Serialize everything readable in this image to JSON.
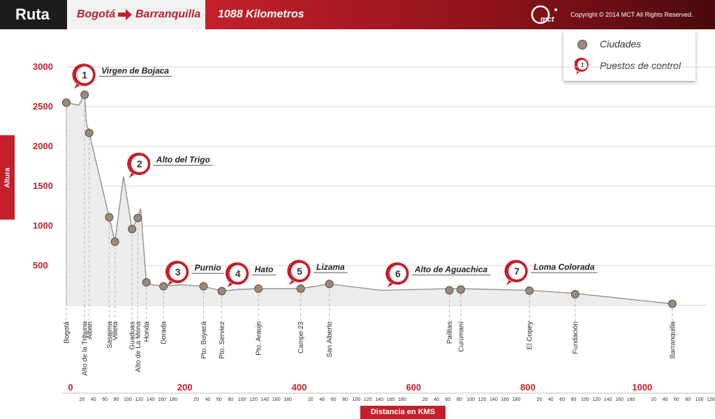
{
  "header": {
    "title": "Ruta",
    "from": "Bogotá",
    "to": "Barranquilla",
    "distance": "1088 Kilometros",
    "copyright": "Copyright © 2014 MCT All Rights Reserved.",
    "logo_text": "mct"
  },
  "legend": {
    "cities_label": "Ciudades",
    "checkpoints_label": "Puestos de control",
    "checkpoint_icon_number": "1"
  },
  "colors": {
    "accent": "#c4202b",
    "city_dot": "#9a8a7c",
    "profile_fill": "#ececec",
    "profile_line": "#8a8a8a"
  },
  "chart_data": {
    "type": "area",
    "title": "",
    "xlabel": "Distancia en KMS",
    "ylabel": "Altura",
    "xlim": [
      0,
      1120
    ],
    "ylim": [
      0,
      3000
    ],
    "y_ticks": [
      500,
      1000,
      1500,
      2000,
      2500,
      3000
    ],
    "x_major_ticks": [
      0,
      200,
      400,
      600,
      800,
      1000
    ],
    "x_minor_labels": [
      "20",
      "40",
      "60",
      "80",
      "100",
      "120",
      "140",
      "160",
      "180"
    ],
    "profile": [
      {
        "x": 0,
        "y": 2550
      },
      {
        "x": 22,
        "y": 2520
      },
      {
        "x": 32,
        "y": 2650
      },
      {
        "x": 35,
        "y": 2300
      },
      {
        "x": 40,
        "y": 2170
      },
      {
        "x": 75,
        "y": 1110
      },
      {
        "x": 85,
        "y": 800
      },
      {
        "x": 100,
        "y": 1620
      },
      {
        "x": 115,
        "y": 960
      },
      {
        "x": 125,
        "y": 1100
      },
      {
        "x": 130,
        "y": 1220
      },
      {
        "x": 140,
        "y": 290
      },
      {
        "x": 150,
        "y": 260
      },
      {
        "x": 170,
        "y": 240
      },
      {
        "x": 200,
        "y": 260
      },
      {
        "x": 240,
        "y": 240
      },
      {
        "x": 272,
        "y": 180
      },
      {
        "x": 300,
        "y": 200
      },
      {
        "x": 336,
        "y": 210
      },
      {
        "x": 410,
        "y": 210
      },
      {
        "x": 460,
        "y": 270
      },
      {
        "x": 550,
        "y": 190
      },
      {
        "x": 670,
        "y": 210
      },
      {
        "x": 690,
        "y": 210
      },
      {
        "x": 810,
        "y": 190
      },
      {
        "x": 890,
        "y": 150
      },
      {
        "x": 1060,
        "y": 20
      }
    ],
    "cities": [
      {
        "name": "Bogotá",
        "x": 0,
        "y": 2550
      },
      {
        "name": "Alto de la Tribuna",
        "x": 32,
        "y": 2650
      },
      {
        "name": "Alban",
        "x": 40,
        "y": 2170
      },
      {
        "name": "Sasaima",
        "x": 75,
        "y": 1110
      },
      {
        "name": "Villeta",
        "x": 85,
        "y": 800
      },
      {
        "name": "Guaduas",
        "x": 115,
        "y": 960
      },
      {
        "name": "Alto de La Mona",
        "x": 125,
        "y": 1100
      },
      {
        "name": "Honda",
        "x": 140,
        "y": 290
      },
      {
        "name": "Dorada",
        "x": 170,
        "y": 240
      },
      {
        "name": "Pto. Boyacá",
        "x": 240,
        "y": 240
      },
      {
        "name": "Pto. Serviez",
        "x": 272,
        "y": 180
      },
      {
        "name": "Pto. Araujo",
        "x": 336,
        "y": 210
      },
      {
        "name": "Campo 23",
        "x": 410,
        "y": 210
      },
      {
        "name": "San Alberto",
        "x": 460,
        "y": 270
      },
      {
        "name": "Pailitas",
        "x": 670,
        "y": 190
      },
      {
        "name": "Curumaní",
        "x": 690,
        "y": 200
      },
      {
        "name": "El Copey",
        "x": 810,
        "y": 185
      },
      {
        "name": "Fundación",
        "x": 890,
        "y": 140
      },
      {
        "name": "Barranquilla",
        "x": 1060,
        "y": 20
      }
    ],
    "checkpoints": [
      {
        "num": "1",
        "name": "Virgen de Bojaca",
        "x": 32,
        "y": 2900
      },
      {
        "num": "2",
        "name": "Alto del Trigo",
        "x": 128,
        "y": 1780
      },
      {
        "num": "3",
        "name": "Purnio",
        "x": 195,
        "y": 420
      },
      {
        "num": "4",
        "name": "Hato",
        "x": 300,
        "y": 400
      },
      {
        "num": "5",
        "name": "Lizama",
        "x": 408,
        "y": 430
      },
      {
        "name": "Alto de Aguachica",
        "num": "6",
        "x": 580,
        "y": 400
      },
      {
        "num": "7",
        "name": "Loma Colorada",
        "x": 788,
        "y": 430
      }
    ]
  }
}
